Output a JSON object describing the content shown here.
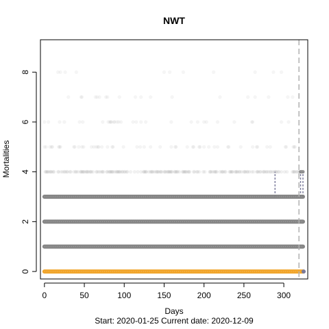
{
  "chart_data": {
    "type": "scatter",
    "title": "NWT",
    "xlabel": "Days",
    "ylabel": "Mortalities",
    "subtitle": "Start:  2020-01-25    Current date:  2020-12-09",
    "xlim": [
      -5,
      330
    ],
    "ylim": [
      -0.3,
      9.3
    ],
    "x_ticks": [
      0,
      50,
      100,
      150,
      200,
      250,
      300
    ],
    "y_ticks": [
      0,
      2,
      4,
      6,
      8
    ],
    "current_day": 319,
    "last_day": 324,
    "colors": {
      "baseline": "#f0a020",
      "points": "#808080",
      "highlight": "#7a7a9a",
      "vline": "#b0b0b0",
      "axis": "#000000"
    },
    "levels": [
      {
        "y": 0,
        "density": 1.0,
        "color": "baseline"
      },
      {
        "y": 1,
        "density": 1.0,
        "color": "points"
      },
      {
        "y": 2,
        "density": 1.0,
        "color": "points"
      },
      {
        "y": 3,
        "density": 1.0,
        "color": "points"
      },
      {
        "y": 4,
        "density": 0.25,
        "color": "points"
      },
      {
        "y": 5,
        "density": 0.07,
        "color": "points"
      },
      {
        "y": 6,
        "density": 0.05,
        "color": "points"
      },
      {
        "y": 7,
        "density": 0.02,
        "color": "points"
      },
      {
        "y": 8,
        "density": 0.01,
        "color": "points"
      }
    ],
    "spikes": [
      {
        "x": 289,
        "y0": 3,
        "y1": 4
      },
      {
        "x": 321,
        "y0": 3,
        "y1": 4
      },
      {
        "x": 324,
        "y0": 3,
        "y1": 4
      }
    ]
  }
}
